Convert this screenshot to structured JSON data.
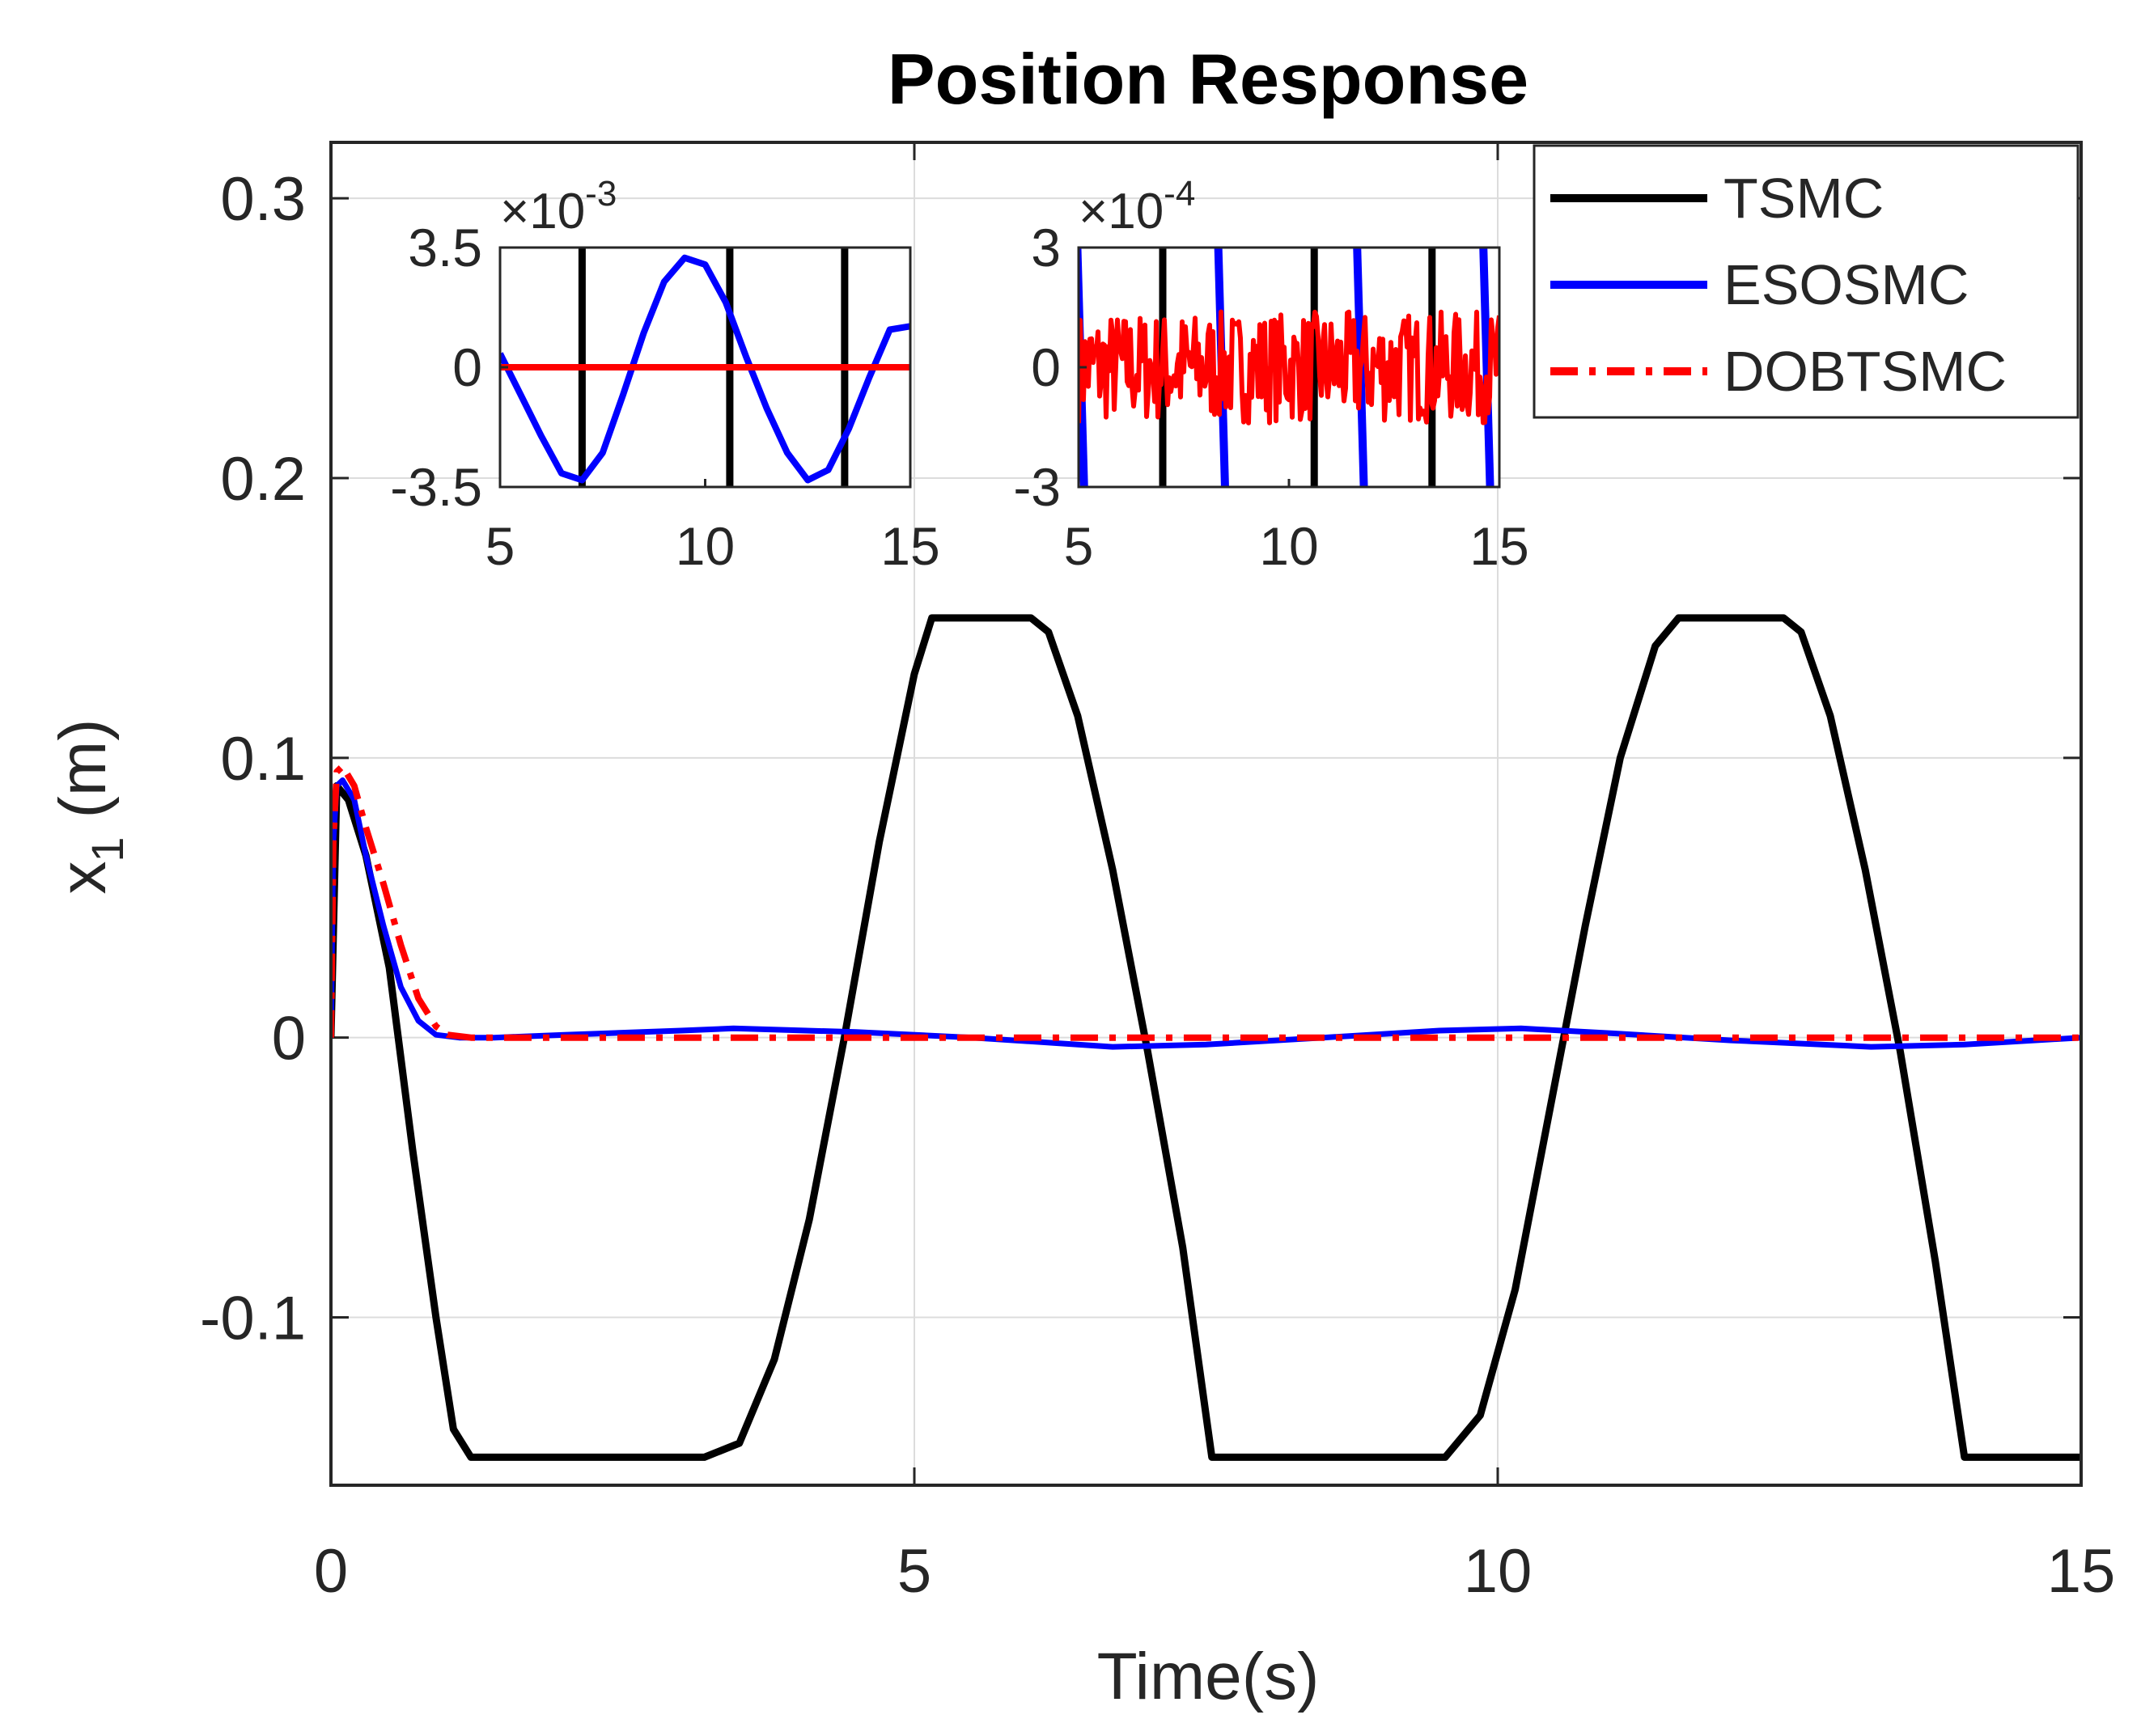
{
  "chart_data": {
    "type": "line",
    "title": "Position Response",
    "xlabel": "Time(s)",
    "ylabel_main": "x",
    "ylabel_sub": "1",
    "ylabel_unit": "(m)",
    "xlim": [
      0,
      15
    ],
    "ylim": [
      -0.16,
      0.32
    ],
    "grid": true,
    "legend_position": "top-right",
    "xticks": [
      0,
      5,
      10,
      15
    ],
    "xtick_labels": [
      "0",
      "5",
      "10",
      "15"
    ],
    "yticks": [
      -0.1,
      0,
      0.1,
      0.2,
      0.3
    ],
    "ytick_labels": [
      "-0.1",
      "0",
      "0.1",
      "0.2",
      "0.3"
    ],
    "series": [
      {
        "name": "TSMC",
        "color": "#000000",
        "dash": "solid",
        "x": [
          0,
          0.05,
          0.15,
          0.3,
          0.5,
          0.7,
          0.9,
          1.05,
          1.2,
          3.2,
          3.5,
          3.8,
          4.1,
          4.4,
          4.7,
          5.0,
          5.15,
          6.0,
          6.15,
          6.4,
          6.7,
          7.0,
          7.3,
          7.55,
          9.55,
          9.85,
          10.15,
          10.45,
          10.75,
          11.05,
          11.35,
          11.55,
          12.45,
          12.6,
          12.85,
          13.15,
          13.45,
          13.75,
          14.0,
          15.0
        ],
        "y": [
          0.0,
          0.09,
          0.085,
          0.065,
          0.025,
          -0.04,
          -0.1,
          -0.14,
          -0.15,
          -0.15,
          -0.145,
          -0.115,
          -0.065,
          0.0,
          0.07,
          0.13,
          0.15,
          0.15,
          0.145,
          0.115,
          0.06,
          -0.005,
          -0.075,
          -0.15,
          -0.15,
          -0.135,
          -0.09,
          -0.025,
          0.04,
          0.1,
          0.14,
          0.15,
          0.15,
          0.145,
          0.115,
          0.06,
          -0.005,
          -0.08,
          -0.15,
          -0.15
        ]
      },
      {
        "name": "ESOSMC",
        "color": "#0000ff",
        "dash": "solid",
        "x": [
          0,
          0.02,
          0.05,
          0.1,
          0.2,
          0.3,
          0.45,
          0.6,
          0.75,
          0.9,
          1.1,
          1.4,
          2.0,
          3.0,
          3.45,
          4.5,
          5.5,
          6.7,
          7.5,
          8.5,
          9.5,
          10.2,
          11.0,
          12.0,
          13.2,
          14.0,
          15.0
        ],
        "y": [
          0.0,
          0.07,
          0.09,
          0.092,
          0.085,
          0.065,
          0.04,
          0.018,
          0.006,
          0.001,
          0.0,
          0.0,
          0.001,
          0.0025,
          0.0033,
          0.002,
          0.0,
          -0.0033,
          -0.0025,
          0.0,
          0.0025,
          0.0033,
          0.0015,
          -0.001,
          -0.0033,
          -0.0025,
          0.0
        ]
      },
      {
        "name": "DOBTSMC",
        "color": "#ff0000",
        "dash": "dashdot",
        "x": [
          0,
          0.02,
          0.05,
          0.1,
          0.2,
          0.3,
          0.45,
          0.6,
          0.75,
          0.9,
          1.0,
          1.2,
          2.0,
          4.0,
          6.0,
          8.0,
          10.0,
          12.0,
          14.0,
          15.0
        ],
        "y": [
          0.0,
          0.07,
          0.095,
          0.097,
          0.09,
          0.075,
          0.055,
          0.033,
          0.014,
          0.004,
          0.001,
          0.0,
          0.0,
          0.0,
          0.0,
          0.0,
          0.0,
          0.0,
          0.0,
          0.0
        ]
      }
    ],
    "insets": [
      {
        "xlim": [
          5,
          15
        ],
        "ylim": [
          -0.0035,
          0.0035
        ],
        "xticks": [
          5,
          10,
          15
        ],
        "xtick_labels": [
          "5",
          "10",
          "15"
        ],
        "yticks": [
          -0.0035,
          0,
          0.0035
        ],
        "ytick_labels": [
          "-3.5",
          "0",
          "3.5"
        ],
        "exponent_times": "×10",
        "exponent_power": "-3",
        "tsmc_crossings": [
          7.0,
          10.6,
          13.4
        ],
        "eso": {
          "x": [
            5,
            5.5,
            6.0,
            6.5,
            7.0,
            7.5,
            8.0,
            8.5,
            9.0,
            9.5,
            10.0,
            10.5,
            11.0,
            11.5,
            12.0,
            12.5,
            13.0,
            13.5,
            14.0,
            14.5,
            15.0
          ],
          "y": [
            0.0004,
            -0.0008,
            -0.002,
            -0.0031,
            -0.0033,
            -0.0025,
            -0.0008,
            0.001,
            0.0025,
            0.0032,
            0.003,
            0.0019,
            0.0003,
            -0.0012,
            -0.0025,
            -0.0033,
            -0.003,
            -0.0018,
            -0.0003,
            0.0011,
            0.0012
          ]
        },
        "dob_level": 0.0
      },
      {
        "xlim": [
          5,
          15
        ],
        "ylim": [
          -0.0003,
          0.0003
        ],
        "xticks": [
          5,
          10,
          15
        ],
        "xtick_labels": [
          "5",
          "10",
          "15"
        ],
        "yticks": [
          -0.0003,
          0,
          0.0003
        ],
        "ytick_labels": [
          "-3",
          "0",
          "3"
        ],
        "exponent_times": "×10",
        "exponent_power": "-4",
        "tsmc_crossings": [
          7.0,
          10.6,
          13.4
        ],
        "eso_crossings": [
          5.05,
          8.4,
          11.7,
          14.7
        ],
        "dob_noise_amplitude": 0.00014
      }
    ]
  }
}
